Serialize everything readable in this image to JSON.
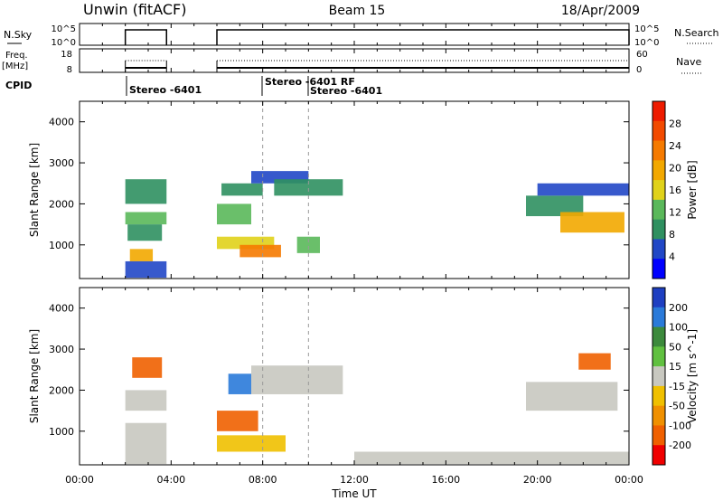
{
  "header": {
    "title_left": "Unwin (fitACF)",
    "title_center": "Beam 15",
    "title_right": "18/Apr/2009"
  },
  "nsky": {
    "label": "N.Sky",
    "right_label": "N.Search",
    "ticks_left": [
      "10^5",
      "10^0"
    ],
    "ticks_right": [
      "10^5",
      "10^0"
    ]
  },
  "freq": {
    "label": "Freq.",
    "unit": "[MHz]",
    "right_label": "Nave",
    "ticks_left": [
      "18",
      "8"
    ],
    "ticks_right": [
      "60",
      "0"
    ]
  },
  "cpid": {
    "label": "CPID",
    "annotations": [
      "Stereo -6401",
      "Stereo -6401 RF",
      "Stereo -6401"
    ]
  },
  "time_axis": {
    "xlabel": "Time UT",
    "tick_labels": [
      "00:00",
      "04:00",
      "08:00",
      "12:00",
      "16:00",
      "20:00",
      "00:00"
    ]
  },
  "colors": {
    "power_scale": [
      "#0000ff",
      "#2147c6",
      "#2f9060",
      "#5ab85a",
      "#e0d21a",
      "#f2a800",
      "#f57a00",
      "#f24a00",
      "#ee1b00"
    ],
    "velocity_scale": [
      "#1e3fc1",
      "#2a7ad9",
      "#3c8a3c",
      "#60c040",
      "#c8c8c0",
      "#f0c000",
      "#f09000",
      "#f06000",
      "#f00000"
    ]
  },
  "chart_data": [
    {
      "type": "heatmap",
      "name": "power",
      "xlabel": "Time UT",
      "ylabel": "Slant Range [km]",
      "xlim": [
        0,
        24
      ],
      "ylim": [
        180,
        4500
      ],
      "yticks": [
        1000,
        2000,
        3000,
        4000
      ],
      "colorbar": {
        "label": "Power [dB]",
        "ticks": [
          4,
          8,
          12,
          16,
          20,
          24,
          28
        ],
        "range": [
          0,
          32
        ]
      },
      "regions": [
        {
          "t": [
            2.0,
            3.8
          ],
          "r": [
            1500,
            1800
          ],
          "level": 12
        },
        {
          "t": [
            2.0,
            3.8
          ],
          "r": [
            2000,
            2600
          ],
          "level": 8
        },
        {
          "t": [
            2.1,
            3.6
          ],
          "r": [
            1100,
            1500
          ],
          "level": 8
        },
        {
          "t": [
            2.2,
            3.2
          ],
          "r": [
            600,
            900
          ],
          "level": 20
        },
        {
          "t": [
            2.0,
            3.8
          ],
          "r": [
            200,
            600
          ],
          "level": 4
        },
        {
          "t": [
            6.0,
            7.5
          ],
          "r": [
            1500,
            2000
          ],
          "level": 12
        },
        {
          "t": [
            6.2,
            8.0
          ],
          "r": [
            2200,
            2500
          ],
          "level": 8
        },
        {
          "t": [
            6.0,
            8.5
          ],
          "r": [
            900,
            1200
          ],
          "level": 16
        },
        {
          "t": [
            7.0,
            8.8
          ],
          "r": [
            700,
            1000
          ],
          "level": 24
        },
        {
          "t": [
            7.5,
            10.0
          ],
          "r": [
            2500,
            2800
          ],
          "level": 4
        },
        {
          "t": [
            8.5,
            11.5
          ],
          "r": [
            2200,
            2600
          ],
          "level": 8
        },
        {
          "t": [
            9.5,
            10.5
          ],
          "r": [
            800,
            1200
          ],
          "level": 12
        },
        {
          "t": [
            19.5,
            22.0
          ],
          "r": [
            1700,
            2200
          ],
          "level": 8
        },
        {
          "t": [
            21.0,
            23.8
          ],
          "r": [
            1300,
            1800
          ],
          "level": 20
        },
        {
          "t": [
            20.0,
            24.0
          ],
          "r": [
            2200,
            2500
          ],
          "level": 4
        }
      ]
    },
    {
      "type": "heatmap",
      "name": "velocity",
      "xlabel": "Time UT",
      "ylabel": "Slant Range [km]",
      "xlim": [
        0,
        24
      ],
      "ylim": [
        180,
        4500
      ],
      "yticks": [
        1000,
        2000,
        3000,
        4000
      ],
      "colorbar": {
        "label": "Velocity [m s^-1]",
        "ticks": [
          200,
          100,
          50,
          15,
          -15,
          -50,
          -100,
          -200
        ]
      },
      "regions": [
        {
          "t": [
            2.3,
            3.6
          ],
          "r": [
            2300,
            2800
          ],
          "level": -200
        },
        {
          "t": [
            2.0,
            3.8
          ],
          "r": [
            1500,
            2000
          ],
          "level": 0
        },
        {
          "t": [
            2.0,
            3.8
          ],
          "r": [
            200,
            1200
          ],
          "level": 0
        },
        {
          "t": [
            6.0,
            7.8
          ],
          "r": [
            1000,
            1500
          ],
          "level": -200
        },
        {
          "t": [
            6.0,
            9.0
          ],
          "r": [
            500,
            900
          ],
          "level": -50
        },
        {
          "t": [
            6.5,
            7.5
          ],
          "r": [
            1900,
            2400
          ],
          "level": 100
        },
        {
          "t": [
            7.5,
            11.5
          ],
          "r": [
            1900,
            2600
          ],
          "level": 0
        },
        {
          "t": [
            12.0,
            24.0
          ],
          "r": [
            200,
            500
          ],
          "level": -15
        },
        {
          "t": [
            19.5,
            23.5
          ],
          "r": [
            1500,
            2200
          ],
          "level": 0
        },
        {
          "t": [
            21.8,
            23.2
          ],
          "r": [
            2500,
            2900
          ],
          "level": -200
        }
      ]
    }
  ]
}
